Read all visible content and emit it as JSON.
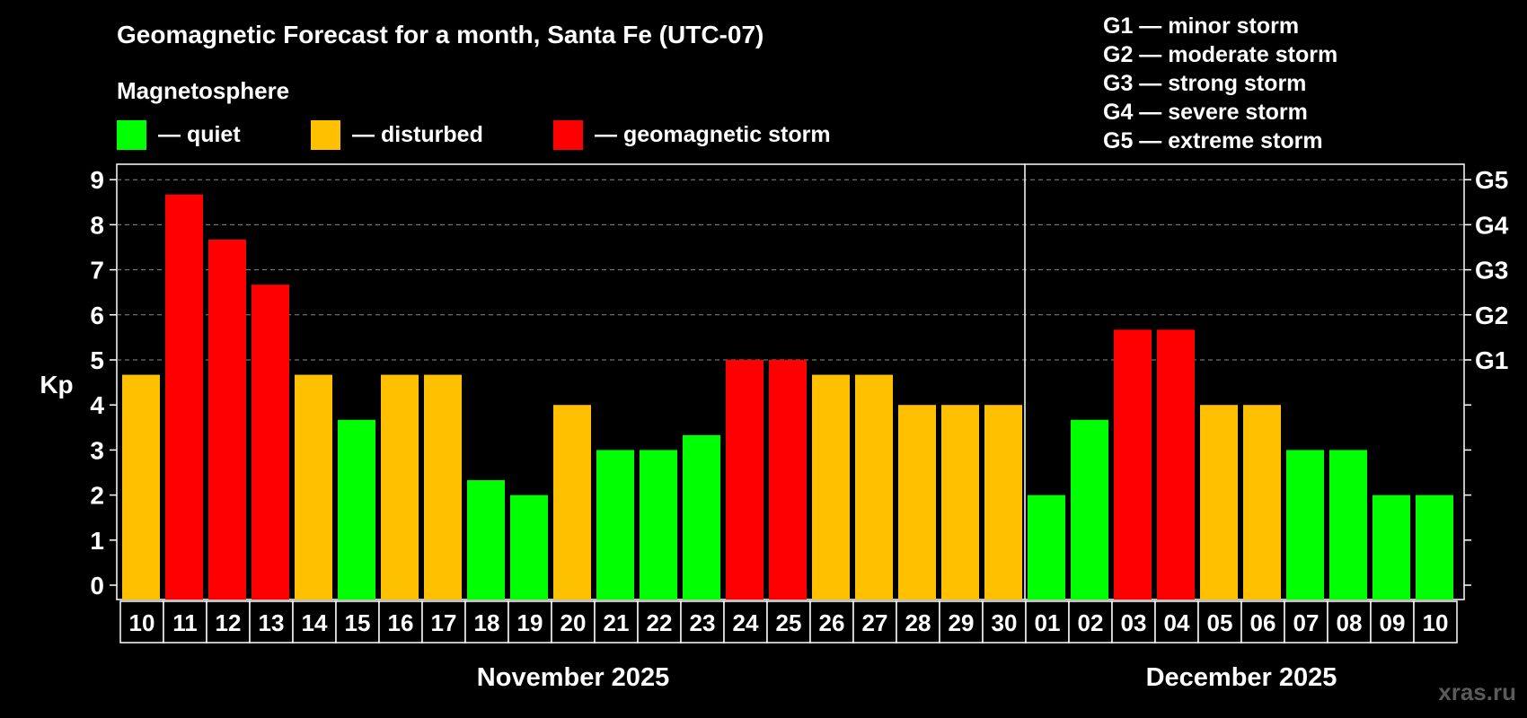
{
  "chart_data": {
    "type": "bar",
    "title": "Geomagnetic Forecast for a month, Santa Fe (UTC-07)",
    "legend_title": "Magnetosphere",
    "legend": [
      {
        "label": "— quiet",
        "color": "#00ff00"
      },
      {
        "label": "— disturbed",
        "color": "#ffc000"
      },
      {
        "label": "— geomagnetic storm",
        "color": "#ff0000"
      }
    ],
    "storm_scale": [
      "G1 — minor storm",
      "G2 — moderate storm",
      "G3 — strong storm",
      "G4 — severe storm",
      "G5 — extreme storm"
    ],
    "ylabel": "Kp",
    "ylim": [
      0,
      9
    ],
    "yticks": [
      "0",
      "1",
      "2",
      "3",
      "4",
      "5",
      "6",
      "7",
      "8",
      "9"
    ],
    "right_ticks": [
      {
        "label": "G1",
        "kp": 5
      },
      {
        "label": "G2",
        "kp": 6
      },
      {
        "label": "G3",
        "kp": 7
      },
      {
        "label": "G4",
        "kp": 8
      },
      {
        "label": "G5",
        "kp": 9
      }
    ],
    "grid": true,
    "months": [
      {
        "label": "November 2025",
        "start_index": 0,
        "end_index": 20
      },
      {
        "label": "December 2025",
        "start_index": 21,
        "end_index": 30
      }
    ],
    "categories": [
      "10",
      "11",
      "12",
      "13",
      "14",
      "15",
      "16",
      "17",
      "18",
      "19",
      "20",
      "21",
      "22",
      "23",
      "24",
      "25",
      "26",
      "27",
      "28",
      "29",
      "30",
      "01",
      "02",
      "03",
      "04",
      "05",
      "06",
      "07",
      "08",
      "09",
      "10"
    ],
    "values": [
      4.67,
      8.67,
      7.67,
      6.67,
      4.67,
      3.67,
      4.67,
      4.67,
      2.33,
      2.0,
      4.0,
      3.0,
      3.0,
      3.33,
      5.0,
      5.0,
      4.67,
      4.67,
      4.0,
      4.0,
      4.0,
      2.0,
      3.67,
      5.67,
      5.67,
      4.0,
      4.0,
      3.0,
      3.0,
      2.0,
      2.0
    ],
    "levels": [
      "disturbed",
      "storm",
      "storm",
      "storm",
      "disturbed",
      "quiet",
      "disturbed",
      "disturbed",
      "quiet",
      "quiet",
      "disturbed",
      "quiet",
      "quiet",
      "quiet",
      "storm",
      "storm",
      "disturbed",
      "disturbed",
      "disturbed",
      "disturbed",
      "disturbed",
      "quiet",
      "quiet",
      "storm",
      "storm",
      "disturbed",
      "disturbed",
      "quiet",
      "quiet",
      "quiet",
      "quiet"
    ],
    "level_colors": {
      "quiet": "#00ff00",
      "disturbed": "#ffc000",
      "storm": "#ff0000"
    }
  },
  "watermark": "xras.ru"
}
